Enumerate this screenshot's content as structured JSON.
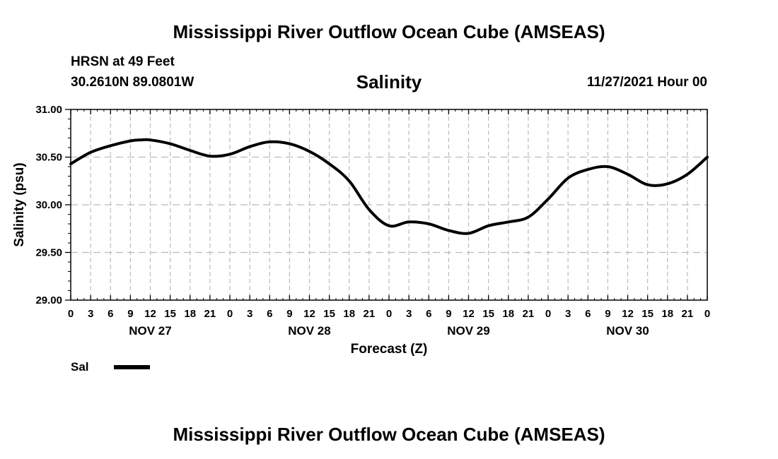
{
  "header": {
    "main_title": "Mississippi River Outflow Ocean Cube (AMSEAS)",
    "station_name": "HRSN at 49 Feet",
    "station_coords": "30.2610N  89.0801W",
    "chart_title": "Salinity",
    "date": "11/27/2021 Hour 00"
  },
  "footer": {
    "title": "Mississippi River Outflow Ocean Cube (AMSEAS)"
  },
  "legend": {
    "label": "Sal"
  },
  "colors": {
    "line": "#000000",
    "grid": "#bbbbbb"
  },
  "chart_data": {
    "type": "line",
    "title": "Salinity",
    "xlabel": "Forecast (Z)",
    "ylabel": "Salinity (psu)",
    "xlim": [
      0,
      96
    ],
    "ylim": [
      29.0,
      31.0
    ],
    "yticks": [
      29.0,
      29.5,
      30.0,
      30.5,
      31.0
    ],
    "ytick_labels": [
      "29.00",
      "29.50",
      "30.00",
      "30.50",
      "31.00"
    ],
    "xticks": [
      0,
      3,
      6,
      9,
      12,
      15,
      18,
      21,
      24,
      27,
      30,
      33,
      36,
      39,
      42,
      45,
      48,
      51,
      54,
      57,
      60,
      63,
      66,
      69,
      72,
      75,
      78,
      81,
      84,
      87,
      90,
      93,
      96
    ],
    "xtick_labels": [
      "0",
      "3",
      "6",
      "9",
      "12",
      "15",
      "18",
      "21",
      "0",
      "3",
      "6",
      "9",
      "12",
      "15",
      "18",
      "21",
      "0",
      "3",
      "6",
      "9",
      "12",
      "15",
      "18",
      "21",
      "0",
      "3",
      "6",
      "9",
      "12",
      "15",
      "18",
      "21",
      "0"
    ],
    "day_labels": [
      {
        "hour": 12,
        "label": "NOV 27"
      },
      {
        "hour": 36,
        "label": "NOV 28"
      },
      {
        "hour": 60,
        "label": "NOV 29"
      },
      {
        "hour": 84,
        "label": "NOV 30"
      }
    ],
    "series": [
      {
        "name": "Sal",
        "x": [
          0,
          3,
          6,
          9,
          10.5,
          12,
          15,
          18,
          21,
          24,
          27,
          30,
          33,
          36,
          39,
          42,
          45,
          48,
          51,
          54,
          57,
          60,
          63,
          66,
          69,
          72,
          75,
          78,
          81,
          84,
          87,
          90,
          93,
          96
        ],
        "y": [
          30.43,
          30.55,
          30.62,
          30.67,
          30.68,
          30.68,
          30.64,
          30.57,
          30.51,
          30.53,
          30.61,
          30.66,
          30.64,
          30.56,
          30.43,
          30.25,
          29.95,
          29.78,
          29.82,
          29.8,
          29.73,
          29.7,
          29.78,
          29.82,
          29.87,
          30.06,
          30.28,
          30.37,
          30.4,
          30.32,
          30.21,
          30.22,
          30.32,
          30.5
        ]
      }
    ]
  }
}
